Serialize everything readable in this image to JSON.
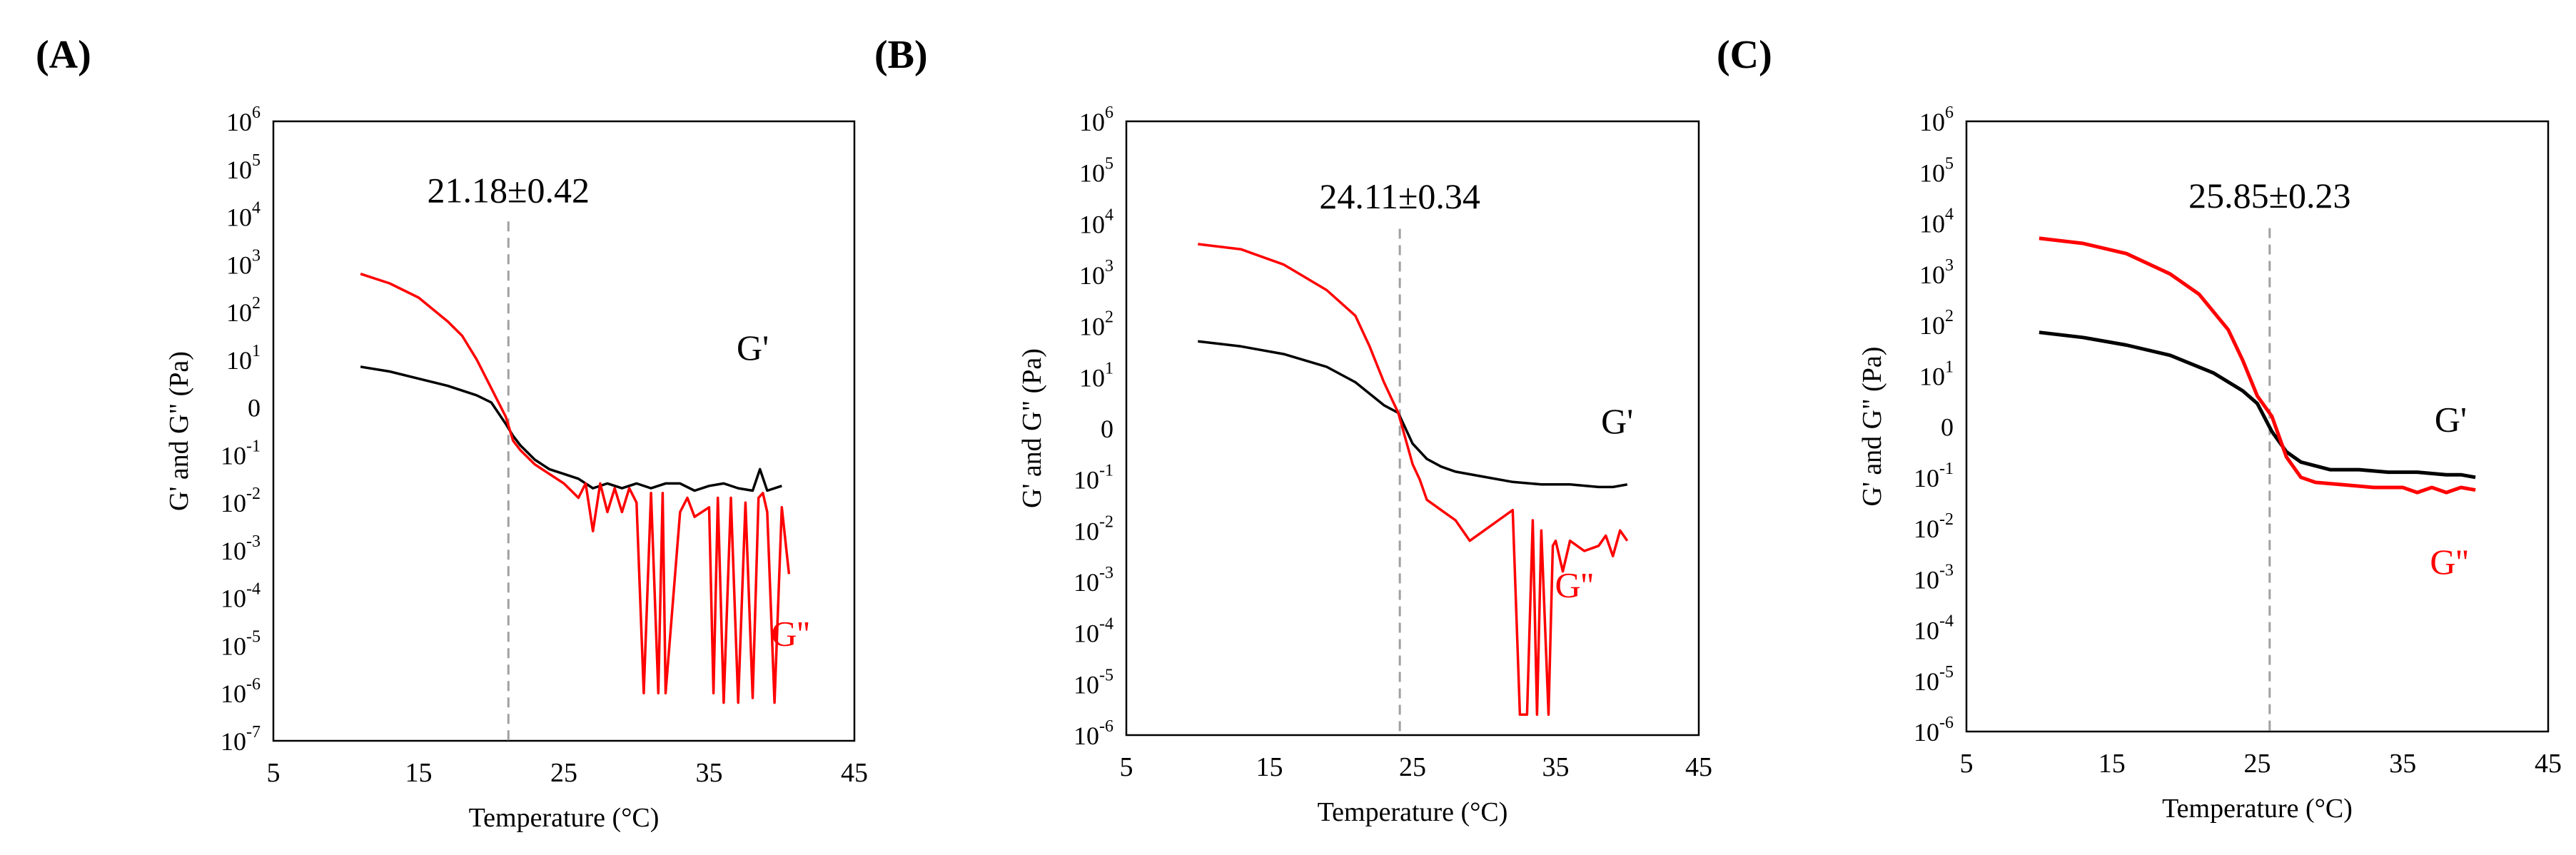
{
  "figure": {
    "colors": {
      "gprime": "#000000",
      "gdouble": "#ff0000",
      "threshold_line": "#a0a0a0"
    }
  },
  "chart_data": [
    {
      "panel_label": "(A)",
      "type": "line",
      "y_scale": "log",
      "xlabel": "Temperature (°C)",
      "ylabel": "G' and G\" (Pa)",
      "xlim": [
        5,
        45
      ],
      "x_ticks": [
        "5",
        "15",
        "25",
        "35",
        "45"
      ],
      "ylim_exp": [
        -7,
        6
      ],
      "y_tick_labels": [
        {
          "base": "10",
          "exp": "6"
        },
        {
          "base": "10",
          "exp": "5"
        },
        {
          "base": "10",
          "exp": "4"
        },
        {
          "base": "10",
          "exp": "3"
        },
        {
          "base": "10",
          "exp": "2"
        },
        {
          "base": "10",
          "exp": "1"
        },
        {
          "base": "0",
          "exp": ""
        },
        {
          "base": "10",
          "exp": "-1"
        },
        {
          "base": "10",
          "exp": "-2"
        },
        {
          "base": "10",
          "exp": "-3"
        },
        {
          "base": "10",
          "exp": "-4"
        },
        {
          "base": "10",
          "exp": "-5"
        },
        {
          "base": "10",
          "exp": "-6"
        },
        {
          "base": "10",
          "exp": "-7"
        }
      ],
      "crossover_x": 21.18,
      "annotation": "21.18±0.42",
      "series": [
        {
          "name": "G'",
          "color": "#000000",
          "label_at": [
            38,
            1.0
          ],
          "x": [
            11,
            13,
            15,
            17,
            19,
            20,
            21,
            21.5,
            22,
            23,
            24,
            25,
            26,
            27,
            28,
            29,
            30,
            31,
            32,
            33,
            34,
            35,
            36,
            37,
            38,
            38.5,
            39,
            40
          ],
          "log_y": [
            0.85,
            0.75,
            0.6,
            0.45,
            0.25,
            0.1,
            -0.35,
            -0.6,
            -0.8,
            -1.1,
            -1.3,
            -1.4,
            -1.5,
            -1.7,
            -1.6,
            -1.7,
            -1.6,
            -1.7,
            -1.6,
            -1.6,
            -1.75,
            -1.65,
            -1.6,
            -1.7,
            -1.75,
            -1.3,
            -1.75,
            -1.65
          ]
        },
        {
          "name": "G''",
          "color": "#ff0000",
          "label_at": [
            40.6,
            -5.0
          ],
          "x": [
            11,
            13,
            15,
            17,
            18,
            19,
            20,
            21,
            21.5,
            22,
            23,
            24,
            25,
            26,
            26.5,
            27,
            27.5,
            28,
            28.5,
            29,
            29.5,
            30,
            30.5,
            31,
            31.5,
            31.8,
            32,
            33,
            33.5,
            34,
            35,
            35.3,
            35.6,
            36,
            36.5,
            37,
            37.5,
            38,
            38.4,
            38.7,
            39,
            39.5,
            40,
            40.5
          ],
          "log_y": [
            2.8,
            2.6,
            2.3,
            1.8,
            1.5,
            1.0,
            0.4,
            -0.2,
            -0.7,
            -0.9,
            -1.2,
            -1.4,
            -1.6,
            -1.9,
            -1.6,
            -2.6,
            -1.6,
            -2.2,
            -1.7,
            -2.2,
            -1.7,
            -2.0,
            -6.0,
            -1.8,
            -6.0,
            -1.8,
            -6.0,
            -2.2,
            -1.9,
            -2.3,
            -2.1,
            -6.0,
            -1.9,
            -6.2,
            -1.9,
            -6.2,
            -2.0,
            -6.1,
            -1.9,
            -1.8,
            -2.2,
            -6.2,
            -2.1,
            -3.5
          ]
        }
      ]
    },
    {
      "panel_label": "(B)",
      "type": "line",
      "y_scale": "log",
      "xlabel": "Temperature (°C)",
      "ylabel": "G' and G\" (Pa)",
      "xlim": [
        5,
        45
      ],
      "x_ticks": [
        "5",
        "15",
        "25",
        "35",
        "45"
      ],
      "ylim_exp": [
        -6,
        6
      ],
      "y_tick_labels": [
        {
          "base": "10",
          "exp": "6"
        },
        {
          "base": "10",
          "exp": "5"
        },
        {
          "base": "10",
          "exp": "4"
        },
        {
          "base": "10",
          "exp": "3"
        },
        {
          "base": "10",
          "exp": "2"
        },
        {
          "base": "10",
          "exp": "1"
        },
        {
          "base": "0",
          "exp": ""
        },
        {
          "base": "10",
          "exp": "-1"
        },
        {
          "base": "10",
          "exp": "-2"
        },
        {
          "base": "10",
          "exp": "-3"
        },
        {
          "base": "10",
          "exp": "-4"
        },
        {
          "base": "10",
          "exp": "-5"
        },
        {
          "base": "10",
          "exp": "-6"
        }
      ],
      "crossover_x": 24.11,
      "annotation": "24.11±0.34",
      "series": [
        {
          "name": "G'",
          "color": "#000000",
          "label_at": [
            39.3,
            -0.1
          ],
          "x": [
            10,
            13,
            16,
            19,
            21,
            23,
            24,
            25,
            26,
            27,
            28,
            30,
            32,
            34,
            36,
            38,
            39,
            40
          ],
          "log_y": [
            1.7,
            1.6,
            1.45,
            1.2,
            0.9,
            0.45,
            0.3,
            -0.3,
            -0.6,
            -0.75,
            -0.85,
            -0.95,
            -1.05,
            -1.1,
            -1.1,
            -1.15,
            -1.15,
            -1.1
          ]
        },
        {
          "name": "G''",
          "color": "#ff0000",
          "label_at": [
            36.3,
            -3.3
          ],
          "x": [
            10,
            13,
            16,
            19,
            21,
            22,
            23,
            23.5,
            24,
            24.5,
            25,
            25.5,
            26,
            27,
            28,
            29,
            30,
            31,
            32,
            32.5,
            33,
            33.4,
            33.7,
            34,
            34.5,
            34.8,
            35,
            35.5,
            36,
            37,
            38,
            38.5,
            39,
            39.5,
            40
          ],
          "log_y": [
            3.6,
            3.5,
            3.2,
            2.7,
            2.2,
            1.6,
            0.9,
            0.6,
            0.3,
            -0.2,
            -0.7,
            -1.0,
            -1.4,
            -1.6,
            -1.8,
            -2.2,
            -2.0,
            -1.8,
            -1.6,
            -5.6,
            -5.6,
            -1.8,
            -5.6,
            -2.0,
            -5.6,
            -2.3,
            -2.2,
            -2.8,
            -2.2,
            -2.4,
            -2.3,
            -2.1,
            -2.5,
            -2.0,
            -2.2
          ]
        }
      ]
    },
    {
      "panel_label": "(C)",
      "type": "line",
      "y_scale": "log",
      "xlabel": "Temperature (°C)",
      "ylabel": "G' and G\" (Pa)",
      "xlim": [
        5,
        45
      ],
      "x_ticks": [
        "5",
        "15",
        "25",
        "35",
        "45"
      ],
      "ylim_exp": [
        -6,
        6
      ],
      "y_tick_labels": [
        {
          "base": "10",
          "exp": "6"
        },
        {
          "base": "10",
          "exp": "5"
        },
        {
          "base": "10",
          "exp": "4"
        },
        {
          "base": "10",
          "exp": "3"
        },
        {
          "base": "10",
          "exp": "2"
        },
        {
          "base": "10",
          "exp": "1"
        },
        {
          "base": "0",
          "exp": ""
        },
        {
          "base": "10",
          "exp": "-1"
        },
        {
          "base": "10",
          "exp": "-2"
        },
        {
          "base": "10",
          "exp": "-3"
        },
        {
          "base": "10",
          "exp": "-4"
        },
        {
          "base": "10",
          "exp": "-5"
        },
        {
          "base": "10",
          "exp": "-6"
        }
      ],
      "crossover_x": 25.85,
      "annotation": "25.85±0.23",
      "series": [
        {
          "name": "G'",
          "color": "#000000",
          "label_at": [
            38.3,
            -0.1
          ],
          "x": [
            10,
            13,
            16,
            19,
            22,
            24,
            25,
            26,
            27,
            28,
            30,
            32,
            34,
            36,
            38,
            39,
            40
          ],
          "log_y": [
            1.85,
            1.75,
            1.6,
            1.4,
            1.05,
            0.7,
            0.45,
            -0.1,
            -0.5,
            -0.7,
            -0.85,
            -0.85,
            -0.9,
            -0.9,
            -0.95,
            -0.95,
            -1.0
          ]
        },
        {
          "name": "G''",
          "color": "#ff0000",
          "label_at": [
            38.2,
            -2.9
          ],
          "x": [
            10,
            13,
            16,
            19,
            21,
            23,
            24,
            25,
            26,
            27,
            28,
            29,
            31,
            33,
            35,
            36,
            37,
            38,
            39,
            40
          ],
          "log_y": [
            3.7,
            3.6,
            3.4,
            3.0,
            2.6,
            1.9,
            1.3,
            0.6,
            0.2,
            -0.6,
            -1.0,
            -1.1,
            -1.15,
            -1.2,
            -1.2,
            -1.3,
            -1.2,
            -1.3,
            -1.2,
            -1.25
          ]
        }
      ]
    }
  ]
}
